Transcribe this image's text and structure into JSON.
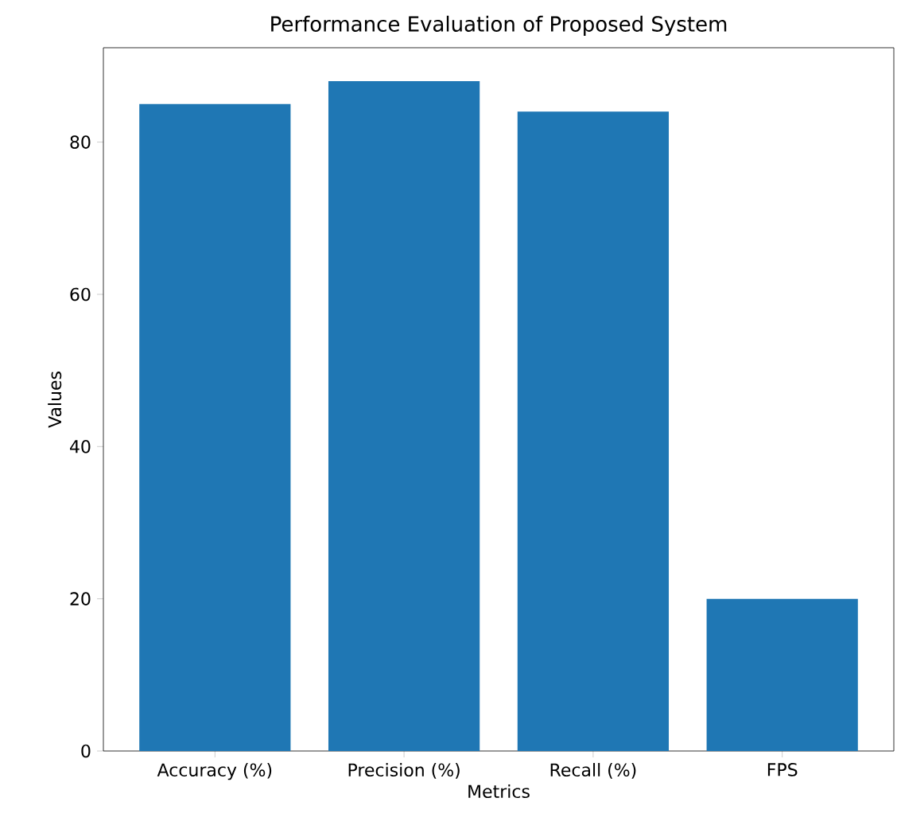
{
  "chart_data": {
    "type": "bar",
    "title": "Performance Evaluation of Proposed System",
    "xlabel": "Metrics",
    "ylabel": "Values",
    "categories": [
      "Accuracy (%)",
      "Precision (%)",
      "Recall (%)",
      "FPS"
    ],
    "values": [
      85,
      88,
      84,
      20
    ],
    "color": "#1f77b4",
    "ylim": [
      0,
      92.4
    ],
    "yticks": [
      0,
      20,
      40,
      60,
      80
    ],
    "grid": false
  }
}
